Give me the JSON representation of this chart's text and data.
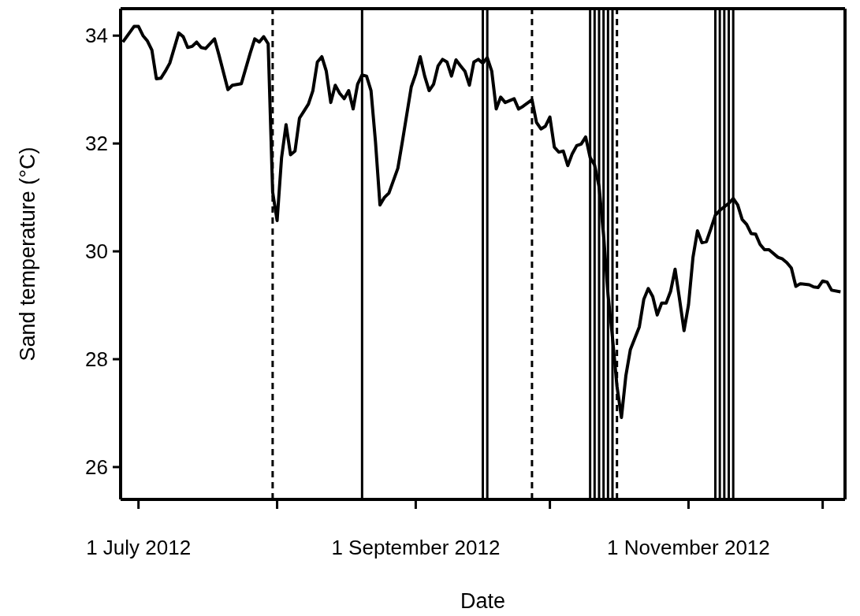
{
  "chart_data": {
    "type": "line",
    "xlabel": "Date",
    "ylabel": "Sand temperature (°C)",
    "xlim": [
      "2012-06-27",
      "2012-12-06"
    ],
    "xticks": [
      {
        "value": "2012-07-01",
        "label": "1 July 2012"
      },
      {
        "value": "2012-08-01",
        "label": null
      },
      {
        "value": "2012-09-01",
        "label": "1 September 2012"
      },
      {
        "value": "2012-10-01",
        "label": null
      },
      {
        "value": "2012-11-01",
        "label": "1 November 2012"
      },
      {
        "value": "2012-12-01",
        "label": null
      }
    ],
    "ylim": [
      25.4,
      34.5
    ],
    "yticks": [
      26,
      28,
      30,
      32,
      34
    ],
    "x": [
      "2012-06-27T12:00",
      "2012-06-30",
      "2012-07-01",
      "2012-07-02",
      "2012-07-03",
      "2012-07-04",
      "2012-07-05",
      "2012-07-06",
      "2012-07-07",
      "2012-07-08",
      "2012-07-10",
      "2012-07-11",
      "2012-07-12",
      "2012-07-13",
      "2012-07-14",
      "2012-07-15",
      "2012-07-16",
      "2012-07-18",
      "2012-07-19",
      "2012-07-21",
      "2012-07-22",
      "2012-07-24",
      "2012-07-26",
      "2012-07-27",
      "2012-07-28",
      "2012-07-29",
      "2012-07-30",
      "2012-07-31",
      "2012-08-01",
      "2012-08-02",
      "2012-08-03",
      "2012-08-04",
      "2012-08-05",
      "2012-08-06",
      "2012-08-07",
      "2012-08-08",
      "2012-08-09",
      "2012-08-10",
      "2012-08-11",
      "2012-08-12",
      "2012-08-13",
      "2012-08-14",
      "2012-08-15",
      "2012-08-16",
      "2012-08-17",
      "2012-08-18",
      "2012-08-19",
      "2012-08-20",
      "2012-08-21",
      "2012-08-22",
      "2012-08-23",
      "2012-08-24",
      "2012-08-25",
      "2012-08-26",
      "2012-08-28",
      "2012-08-29",
      "2012-08-31",
      "2012-09-01",
      "2012-09-02",
      "2012-09-03",
      "2012-09-04",
      "2012-09-05",
      "2012-09-06",
      "2012-09-07",
      "2012-09-08",
      "2012-09-09",
      "2012-09-10",
      "2012-09-11",
      "2012-09-12",
      "2012-09-13",
      "2012-09-14",
      "2012-09-15",
      "2012-09-16",
      "2012-09-17",
      "2012-09-18",
      "2012-09-19",
      "2012-09-20",
      "2012-09-21",
      "2012-09-23",
      "2012-09-24",
      "2012-09-25",
      "2012-09-27",
      "2012-09-28",
      "2012-09-29",
      "2012-09-30",
      "2012-10-01",
      "2012-10-02",
      "2012-10-03",
      "2012-10-04",
      "2012-10-05",
      "2012-10-06",
      "2012-10-07",
      "2012-10-08",
      "2012-10-09",
      "2012-10-10",
      "2012-10-11",
      "2012-10-12",
      "2012-10-13",
      "2012-10-14",
      "2012-10-15",
      "2012-10-16",
      "2012-10-17",
      "2012-10-18",
      "2012-10-19",
      "2012-10-21",
      "2012-10-22",
      "2012-10-23",
      "2012-10-24",
      "2012-10-25",
      "2012-10-26",
      "2012-10-27",
      "2012-10-28",
      "2012-10-29",
      "2012-10-30",
      "2012-10-31",
      "2012-11-01",
      "2012-11-02",
      "2012-11-03",
      "2012-11-04",
      "2012-11-05",
      "2012-11-06",
      "2012-11-07",
      "2012-11-08",
      "2012-11-10",
      "2012-11-11",
      "2012-11-12",
      "2012-11-13",
      "2012-11-14",
      "2012-11-15",
      "2012-11-16",
      "2012-11-17",
      "2012-11-18",
      "2012-11-19",
      "2012-11-21",
      "2012-11-22",
      "2012-11-23",
      "2012-11-24",
      "2012-11-25",
      "2012-11-26",
      "2012-11-28",
      "2012-11-29",
      "2012-11-30",
      "2012-12-01",
      "2012-12-02",
      "2012-12-03",
      "2012-12-05"
    ],
    "series": [
      {
        "color": "#000000",
        "values": [
          33.88,
          34.17,
          34.17,
          34.0,
          33.9,
          33.73,
          33.2,
          33.21,
          33.34,
          33.49,
          34.05,
          33.98,
          33.78,
          33.8,
          33.88,
          33.78,
          33.76,
          33.94,
          33.64,
          33.0,
          33.08,
          33.11,
          33.68,
          33.94,
          33.88,
          33.98,
          33.85,
          31.1,
          30.57,
          31.74,
          32.35,
          31.79,
          31.86,
          32.47,
          32.6,
          32.73,
          32.98,
          33.51,
          33.61,
          33.34,
          32.76,
          33.08,
          32.93,
          32.83,
          32.98,
          32.64,
          33.1,
          33.27,
          33.25,
          32.98,
          32.03,
          30.86,
          31.0,
          31.08,
          31.54,
          32.03,
          33.05,
          33.29,
          33.61,
          33.25,
          32.98,
          33.1,
          33.44,
          33.56,
          33.51,
          33.25,
          33.55,
          33.44,
          33.34,
          33.08,
          33.51,
          33.56,
          33.49,
          33.59,
          33.34,
          32.64,
          32.86,
          32.76,
          32.83,
          32.64,
          32.69,
          32.81,
          32.39,
          32.27,
          32.32,
          32.49,
          31.93,
          31.84,
          31.86,
          31.59,
          31.81,
          31.96,
          31.99,
          32.12,
          31.74,
          31.6,
          31.2,
          30.3,
          29.2,
          28.4,
          27.5,
          26.92,
          27.7,
          28.18,
          28.6,
          29.11,
          29.31,
          29.16,
          28.82,
          29.04,
          29.04,
          29.26,
          29.67,
          29.11,
          28.53,
          29.01,
          29.89,
          30.38,
          30.16,
          30.18,
          30.42,
          30.67,
          30.76,
          30.89,
          30.98,
          30.86,
          30.59,
          30.5,
          30.33,
          30.32,
          30.13,
          30.03,
          30.03,
          29.89,
          29.86,
          29.79,
          29.69,
          29.35,
          29.4,
          29.38,
          29.34,
          29.33,
          29.45,
          29.43,
          29.28,
          29.25
        ]
      }
    ],
    "ref_lines": [
      {
        "axis": "x",
        "value": "2012-07-31",
        "color": "#000000",
        "line_style": "dashed"
      },
      {
        "axis": "x",
        "value": "2012-08-20",
        "color": "#000000",
        "line_style": "solid"
      },
      {
        "axis": "x",
        "value": "2012-09-16",
        "color": "#000000",
        "line_style": "solid"
      },
      {
        "axis": "x",
        "value": "2012-09-17",
        "color": "#000000",
        "line_style": "solid"
      },
      {
        "axis": "x",
        "value": "2012-09-27",
        "color": "#000000",
        "line_style": "dashed"
      },
      {
        "axis": "x",
        "value": "2012-10-10",
        "color": "#000000",
        "line_style": "solid"
      },
      {
        "axis": "x",
        "value": "2012-10-11",
        "color": "#000000",
        "line_style": "solid"
      },
      {
        "axis": "x",
        "value": "2012-10-12",
        "color": "#000000",
        "line_style": "solid"
      },
      {
        "axis": "x",
        "value": "2012-10-13",
        "color": "#000000",
        "line_style": "solid"
      },
      {
        "axis": "x",
        "value": "2012-10-14",
        "color": "#000000",
        "line_style": "solid"
      },
      {
        "axis": "x",
        "value": "2012-10-15",
        "color": "#000000",
        "line_style": "solid"
      },
      {
        "axis": "x",
        "value": "2012-10-16",
        "color": "#000000",
        "line_style": "dashed"
      },
      {
        "axis": "x",
        "value": "2012-11-07",
        "color": "#000000",
        "line_style": "solid"
      },
      {
        "axis": "x",
        "value": "2012-11-08",
        "color": "#000000",
        "line_style": "solid"
      },
      {
        "axis": "x",
        "value": "2012-11-09",
        "color": "#000000",
        "line_style": "solid"
      },
      {
        "axis": "x",
        "value": "2012-11-10",
        "color": "#000000",
        "line_style": "solid"
      },
      {
        "axis": "x",
        "value": "2012-11-11",
        "color": "#000000",
        "line_style": "solid"
      }
    ]
  }
}
